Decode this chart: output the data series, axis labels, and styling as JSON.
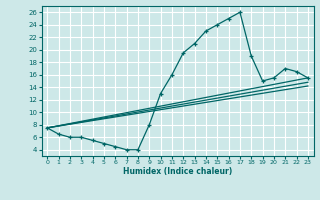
{
  "xlabel": "Humidex (Indice chaleur)",
  "bg_color": "#cde8e8",
  "grid_color": "#ffffff",
  "line_color": "#006666",
  "xlim": [
    -0.5,
    23.5
  ],
  "ylim": [
    3,
    27
  ],
  "yticks": [
    4,
    6,
    8,
    10,
    12,
    14,
    16,
    18,
    20,
    22,
    24,
    26
  ],
  "xticks": [
    0,
    1,
    2,
    3,
    4,
    5,
    6,
    7,
    8,
    9,
    10,
    11,
    12,
    13,
    14,
    15,
    16,
    17,
    18,
    19,
    20,
    21,
    22,
    23
  ],
  "series1_x": [
    0,
    1,
    2,
    3,
    4,
    5,
    6,
    7,
    8,
    9,
    10,
    11,
    12,
    13,
    14,
    15,
    16,
    17,
    18,
    19,
    20,
    21,
    22,
    23
  ],
  "series1_y": [
    7.5,
    6.5,
    6.0,
    6.0,
    5.5,
    5.0,
    4.5,
    4.0,
    4.0,
    8.0,
    13.0,
    16.0,
    19.5,
    21.0,
    23.0,
    24.0,
    25.0,
    26.0,
    19.0,
    15.0,
    15.5,
    17.0,
    16.5,
    15.5
  ],
  "line1_x": [
    0,
    23
  ],
  "line1_y": [
    7.5,
    15.5
  ],
  "line2_x": [
    0,
    23
  ],
  "line2_y": [
    7.5,
    14.8
  ],
  "line3_x": [
    0,
    23
  ],
  "line3_y": [
    7.5,
    14.2
  ]
}
